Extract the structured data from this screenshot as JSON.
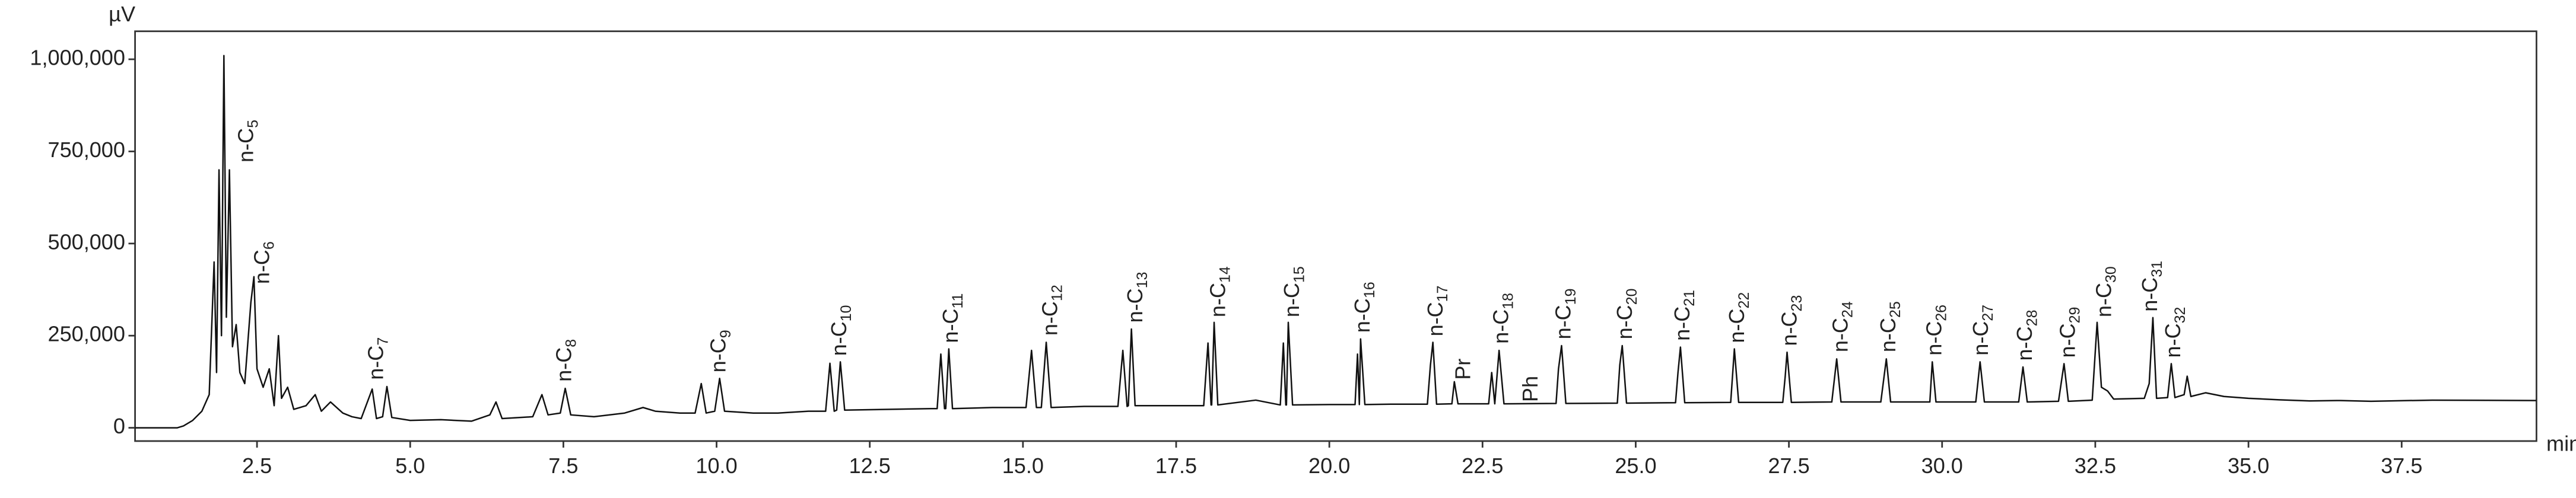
{
  "chart_data": {
    "type": "line",
    "y_label": "µV",
    "x_label": "min",
    "color": "#111111",
    "xlim": [
      0.51,
      39.7
    ],
    "ylim": [
      -36000,
      1076000
    ],
    "xticks": [
      2.5,
      {
        "value": 5,
        "label": "5.0"
      },
      7.5,
      {
        "value": 10,
        "label": "10.0"
      },
      12.5,
      {
        "value": 15,
        "label": "15.0"
      },
      17.5,
      {
        "value": 20,
        "label": "20.0"
      },
      22.5,
      {
        "value": 25,
        "label": "25.0"
      },
      27.5,
      {
        "value": 30,
        "label": "30.0"
      },
      32.5,
      {
        "value": 35,
        "label": "35.0"
      },
      37.5
    ],
    "yticks": [
      0,
      {
        "value": 250000,
        "label": "250,000"
      },
      {
        "value": 500000,
        "label": "500,000"
      },
      {
        "value": 750000,
        "label": "750,000"
      },
      {
        "value": 1000000,
        "label": "1,000,000"
      }
    ],
    "x": [
      0.51,
      1.2,
      1.3,
      1.45,
      1.6,
      1.72,
      1.8,
      1.84,
      1.88,
      1.92,
      1.96,
      2.0,
      2.05,
      2.1,
      2.16,
      2.22,
      2.3,
      2.4,
      2.45,
      2.5,
      2.6,
      2.7,
      2.78,
      2.85,
      2.9,
      3.0,
      3.1,
      3.3,
      3.45,
      3.55,
      3.7,
      3.9,
      4.05,
      4.2,
      4.38,
      4.45,
      4.55,
      4.62,
      4.7,
      5.0,
      5.5,
      6.0,
      6.3,
      6.4,
      6.5,
      7.0,
      7.15,
      7.25,
      7.45,
      7.53,
      7.62,
      8.0,
      8.5,
      8.8,
      9.0,
      9.4,
      9.65,
      9.75,
      9.83,
      9.97,
      10.05,
      10.13,
      10.6,
      11.0,
      11.5,
      11.78,
      11.85,
      11.92,
      11.96,
      12.02,
      12.09,
      12.8,
      13.5,
      13.6,
      13.66,
      13.72,
      13.74,
      13.79,
      13.85,
      14.5,
      15.05,
      15.14,
      15.22,
      15.3,
      15.38,
      15.46,
      16.0,
      16.55,
      16.63,
      16.7,
      16.72,
      16.77,
      16.83,
      17.5,
      17.95,
      18.02,
      18.07,
      18.08,
      18.12,
      18.18,
      18.8,
      19.2,
      19.25,
      19.29,
      19.3,
      19.33,
      19.4,
      20.0,
      20.42,
      20.46,
      20.49,
      20.51,
      20.58,
      21.0,
      21.6,
      21.65,
      21.69,
      21.75,
      22.0,
      22.04,
      22.1,
      22.6,
      22.65,
      22.7,
      22.77,
      22.85,
      23.7,
      23.74,
      23.79,
      23.86,
      24.7,
      24.74,
      24.78,
      24.85,
      25.65,
      25.69,
      25.73,
      25.8,
      26.55,
      26.61,
      26.68,
      27.4,
      27.44,
      27.47,
      27.54,
      28.2,
      28.28,
      28.35,
      29.0,
      29.09,
      29.16,
      29.8,
      29.84,
      29.9,
      30.55,
      30.62,
      30.69,
      31.25,
      31.32,
      31.39,
      31.9,
      31.99,
      32.06,
      32.45,
      32.53,
      32.6,
      32.7,
      32.8,
      33.3,
      33.38,
      33.44,
      33.5,
      33.68,
      33.74,
      33.8,
      33.95,
      34.0,
      34.06,
      34.3,
      34.6,
      35.0,
      35.5,
      36.0,
      36.5,
      37.0,
      38.0,
      39.7
    ],
    "values": [
      0,
      0,
      5000,
      20000,
      45000,
      90000,
      450000,
      150000,
      700000,
      250000,
      1010000,
      300000,
      700000,
      220000,
      280000,
      150000,
      120000,
      340000,
      410000,
      160000,
      110000,
      160000,
      60000,
      250000,
      80000,
      110000,
      50000,
      60000,
      90000,
      45000,
      70000,
      40000,
      30000,
      25000,
      105000,
      25000,
      30000,
      112000,
      28000,
      20000,
      22000,
      18000,
      35000,
      70000,
      25000,
      30000,
      90000,
      35000,
      40000,
      107000,
      35000,
      30000,
      40000,
      55000,
      45000,
      40000,
      40000,
      120000,
      40000,
      45000,
      134000,
      45000,
      40000,
      40000,
      45000,
      45000,
      175000,
      45000,
      48000,
      179000,
      48000,
      50000,
      52000,
      52000,
      200000,
      52000,
      52000,
      214000,
      52000,
      55000,
      55000,
      210000,
      55000,
      55000,
      232000,
      55000,
      58000,
      58000,
      210000,
      58000,
      60000,
      268000,
      60000,
      60000,
      60000,
      230000,
      62000,
      62000,
      286000,
      62000,
      75000,
      62000,
      230000,
      62000,
      62000,
      286000,
      62000,
      63000,
      63000,
      200000,
      63000,
      241000,
      63000,
      64000,
      64000,
      170000,
      232000,
      64000,
      65000,
      125000,
      65000,
      65000,
      150000,
      65000,
      210000,
      65000,
      66000,
      160000,
      223000,
      66000,
      67000,
      170000,
      223000,
      67000,
      68000,
      150000,
      219000,
      68000,
      69000,
      214000,
      69000,
      69000,
      140000,
      205000,
      69000,
      70000,
      187000,
      70000,
      70000,
      187000,
      70000,
      70000,
      179000,
      70000,
      70000,
      179000,
      70000,
      70000,
      165000,
      70000,
      72000,
      174000,
      72000,
      75000,
      286000,
      110000,
      100000,
      78000,
      80000,
      120000,
      299000,
      80000,
      82000,
      174000,
      82000,
      90000,
      140000,
      85000,
      95000,
      85000,
      80000,
      76000,
      73000,
      74000,
      72000,
      75000,
      74000
    ],
    "annotations": [
      {
        "text": "n-C",
        "sub": "5",
        "x": 2.34,
        "y": 720000
      },
      {
        "text": "n-C",
        "sub": "6",
        "x": 2.6,
        "y": 390000
      },
      {
        "text": "n-C",
        "sub": "7",
        "x": 4.46,
        "y": 130000
      },
      {
        "text": "n-C",
        "sub": "8",
        "x": 7.53,
        "y": 125000
      },
      {
        "text": "n-C",
        "sub": "9",
        "x": 10.05,
        "y": 150000
      },
      {
        "text": "n-C",
        "sub": "10",
        "x": 12.02,
        "y": 195000
      },
      {
        "text": "n-C",
        "sub": "11",
        "x": 13.84,
        "y": 230000
      },
      {
        "text": "n-C",
        "sub": "12",
        "x": 15.46,
        "y": 250000
      },
      {
        "text": "n-C",
        "sub": "13",
        "x": 16.85,
        "y": 285000
      },
      {
        "text": "n-C",
        "sub": "14",
        "x": 18.2,
        "y": 300000
      },
      {
        "text": "n-C",
        "sub": "15",
        "x": 19.41,
        "y": 300000
      },
      {
        "text": "n-C",
        "sub": "16",
        "x": 20.56,
        "y": 258000
      },
      {
        "text": "n-C",
        "sub": "17",
        "x": 21.75,
        "y": 248000
      },
      {
        "text": "Pr",
        "x": 22.2,
        "y": 130000
      },
      {
        "text": "n-C",
        "sub": "18",
        "x": 22.82,
        "y": 228000
      },
      {
        "text": "Ph",
        "x": 23.3,
        "y": 70000
      },
      {
        "text": "n-C",
        "sub": "19",
        "x": 23.84,
        "y": 240000
      },
      {
        "text": "n-C",
        "sub": "20",
        "x": 24.84,
        "y": 240000
      },
      {
        "text": "n-C",
        "sub": "21",
        "x": 25.78,
        "y": 236000
      },
      {
        "text": "n-C",
        "sub": "22",
        "x": 26.67,
        "y": 230000
      },
      {
        "text": "n-C",
        "sub": "23",
        "x": 27.53,
        "y": 222000
      },
      {
        "text": "n-C",
        "sub": "24",
        "x": 28.36,
        "y": 205000
      },
      {
        "text": "n-C",
        "sub": "25",
        "x": 29.14,
        "y": 205000
      },
      {
        "text": "n-C",
        "sub": "26",
        "x": 29.89,
        "y": 196000
      },
      {
        "text": "n-C",
        "sub": "27",
        "x": 30.65,
        "y": 196000
      },
      {
        "text": "n-C",
        "sub": "28",
        "x": 31.37,
        "y": 182000
      },
      {
        "text": "n-C",
        "sub": "29",
        "x": 32.07,
        "y": 190000
      },
      {
        "text": "n-C",
        "sub": "30",
        "x": 32.66,
        "y": 300000
      },
      {
        "text": "n-C",
        "sub": "31",
        "x": 33.41,
        "y": 315000
      },
      {
        "text": "n-C",
        "sub": "32",
        "x": 33.79,
        "y": 190000
      }
    ]
  }
}
